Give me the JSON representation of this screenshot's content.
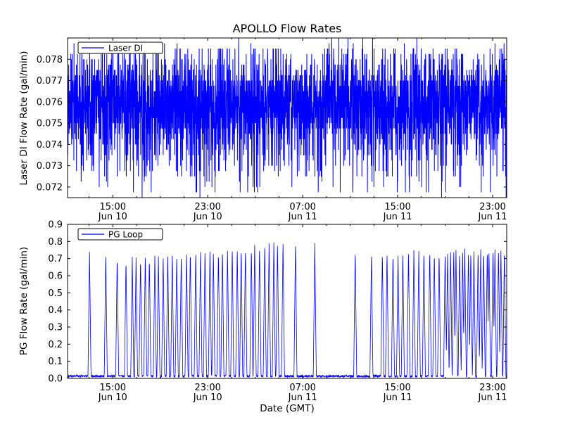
{
  "chart_data": [
    {
      "type": "line",
      "title": "APOLLO Flow Rates",
      "ylabel": "Laser DI Flow Rate (gal/min)",
      "legend": "Laser DI",
      "series_color": "#0000ff",
      "ylim": [
        0.0715,
        0.079
      ],
      "yticks": {
        "values": [
          0.072,
          0.073,
          0.074,
          0.075,
          0.076,
          0.077,
          0.078
        ],
        "labels": [
          "0.072",
          "0.073",
          "0.074",
          "0.075",
          "0.076",
          "0.077",
          "0.078"
        ]
      },
      "xticks": [
        {
          "f": 0.103,
          "time": "15:00",
          "date": "Jun 10"
        },
        {
          "f": 0.31925,
          "time": "23:00",
          "date": "Jun 10"
        },
        {
          "f": 0.5355,
          "time": "07:00",
          "date": "Jun 11"
        },
        {
          "f": 0.75175,
          "time": "15:00",
          "date": "Jun 11"
        },
        {
          "f": 0.968,
          "time": "23:00",
          "date": "Jun 11"
        }
      ],
      "grid": false,
      "legend_position": "upper-left",
      "signal": {
        "kind": "dense-noise",
        "n": 3000,
        "seed": 42,
        "band": [
          0.0746,
          0.077
        ],
        "p_band": 0.6,
        "p_upper": 0.2,
        "upper_tail_max": 0.0786,
        "p_lower": 0.17,
        "lower_tail_min": 0.0724,
        "extreme_min": 0.0715,
        "extreme_max": 0.079,
        "quantize": 0.00025,
        "mean_level": 0.0755
      }
    },
    {
      "type": "line",
      "ylabel": "PG Flow Rate (gal/min)",
      "xlabel": "Date (GMT)",
      "legend": "PG Loop",
      "series_color": "#0000ff",
      "ylim": [
        0.0,
        0.9
      ],
      "yticks": {
        "values": [
          0.0,
          0.1,
          0.2,
          0.3,
          0.4,
          0.5,
          0.6,
          0.7,
          0.8,
          0.9
        ],
        "labels": [
          "0.0",
          "0.1",
          "0.2",
          "0.3",
          "0.4",
          "0.5",
          "0.6",
          "0.7",
          "0.8",
          "0.9"
        ]
      },
      "xticks": [
        {
          "f": 0.103,
          "time": "15:00",
          "date": "Jun 10"
        },
        {
          "f": 0.31925,
          "time": "23:00",
          "date": "Jun 10"
        },
        {
          "f": 0.5355,
          "time": "07:00",
          "date": "Jun 11"
        },
        {
          "f": 0.75175,
          "time": "15:00",
          "date": "Jun 11"
        },
        {
          "f": 0.968,
          "time": "23:00",
          "date": "Jun 11"
        }
      ],
      "grid": false,
      "legend_position": "upper-left",
      "signal": {
        "kind": "baseline-spikes",
        "n": 2200,
        "seed": 7,
        "baseline": [
          0.006,
          0.02
        ],
        "spike_halfwidth": 0.0035,
        "isolated_spikes": [
          {
            "t": 0.05,
            "peak": 0.745
          },
          {
            "t": 0.087,
            "peak": 0.74
          },
          {
            "t": 0.113,
            "peak": 0.72
          },
          {
            "t": 0.519,
            "peak": 0.8
          },
          {
            "t": 0.563,
            "peak": 0.795
          },
          {
            "t": 0.655,
            "peak": 0.755
          },
          {
            "t": 0.692,
            "peak": 0.74
          }
        ],
        "clusters": [
          {
            "start": 0.135,
            "end": 0.49,
            "count": 35,
            "peak_start": 0.705,
            "peak_end": 0.795
          },
          {
            "start": 0.715,
            "end": 0.848,
            "count": 12,
            "peak_start": 0.735,
            "peak_end": 0.755
          },
          {
            "start": 0.858,
            "end": 0.995,
            "count": 21,
            "peak_start": 0.74,
            "peak_end": 0.765
          }
        ]
      }
    }
  ]
}
